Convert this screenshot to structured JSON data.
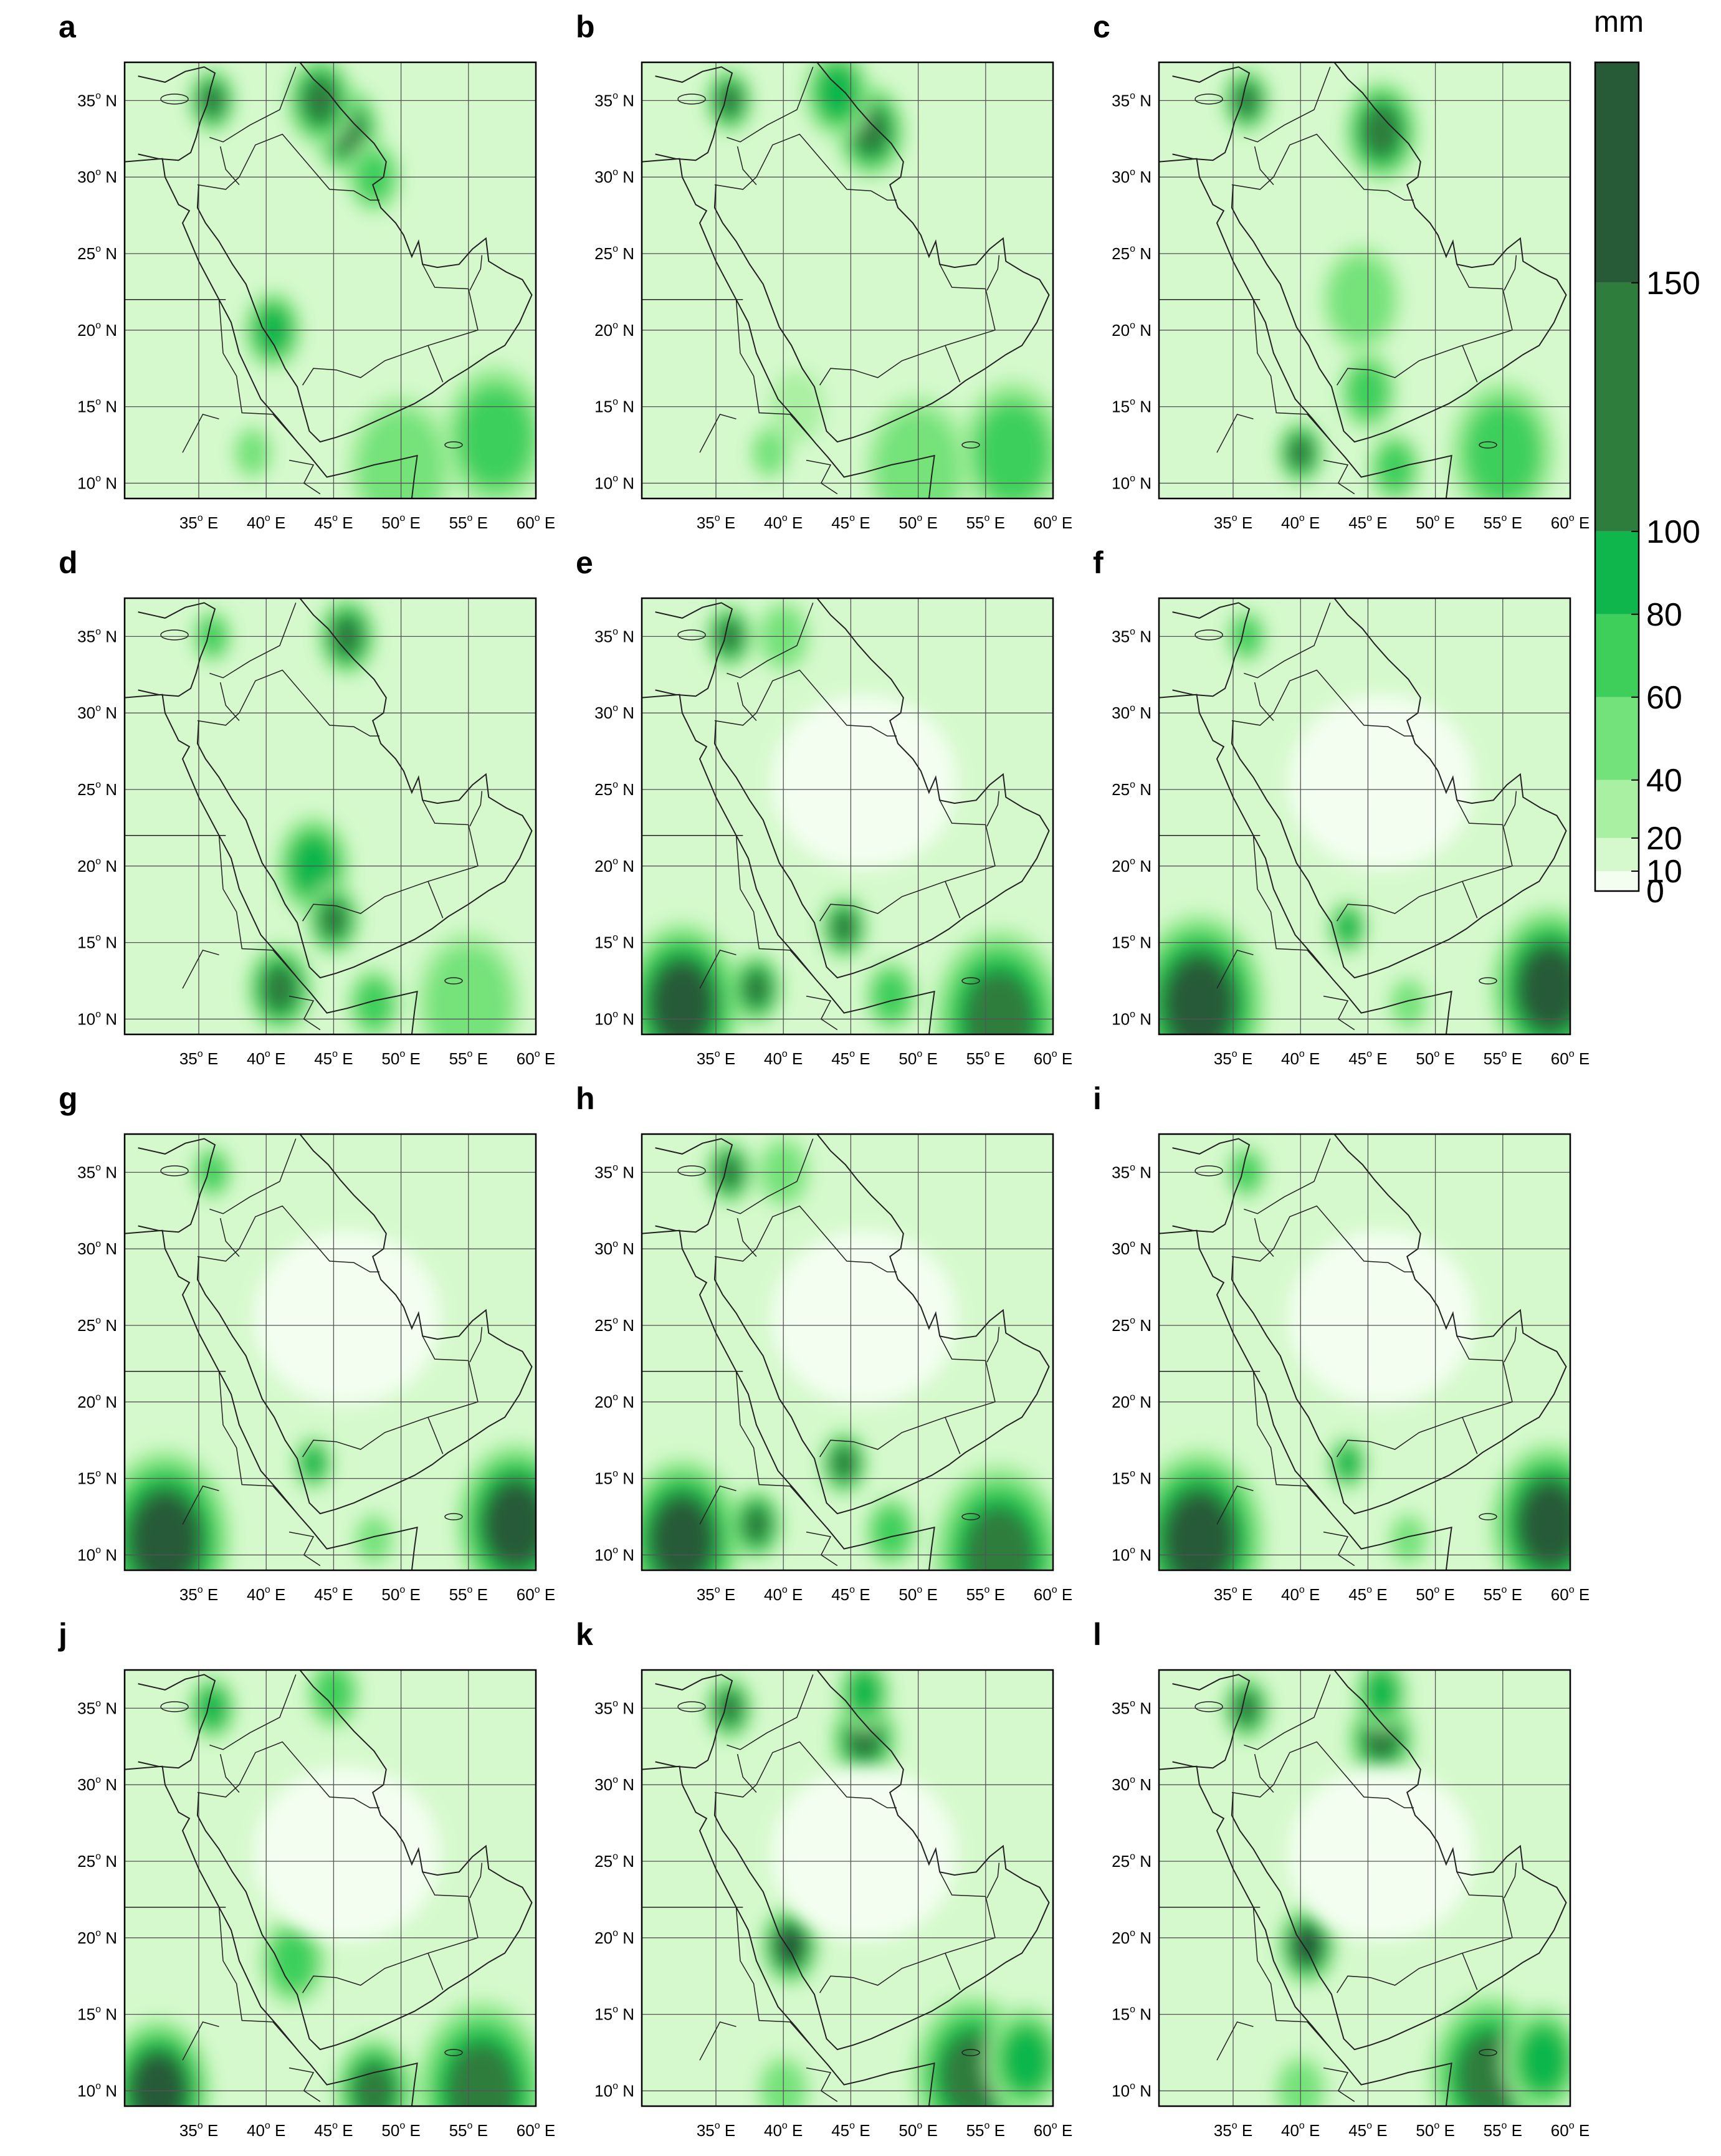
{
  "panels": [
    {
      "letter": "a",
      "profile": "east-north"
    },
    {
      "letter": "b",
      "profile": "north"
    },
    {
      "letter": "c",
      "profile": "central"
    },
    {
      "letter": "d",
      "profile": "central-strong"
    },
    {
      "letter": "e",
      "profile": "south"
    },
    {
      "letter": "f",
      "profile": "south-dry"
    },
    {
      "letter": "g",
      "profile": "south-dry"
    },
    {
      "letter": "h",
      "profile": "south"
    },
    {
      "letter": "i",
      "profile": "south-dry"
    },
    {
      "letter": "j",
      "profile": "southwest"
    },
    {
      "letter": "k",
      "profile": "asir-north"
    },
    {
      "letter": "l",
      "profile": "asir-north"
    }
  ],
  "lon_ticks": [
    "35",
    "40",
    "45",
    "50",
    "55",
    "60"
  ],
  "lon_suffix": "E",
  "lat_ticks": [
    "35",
    "30",
    "25",
    "20",
    "15",
    "10"
  ],
  "lat_suffix": "N",
  "degree_symbol": "o",
  "colorbar": {
    "unit": "mm",
    "labels": [
      "150",
      "100",
      "80",
      "60",
      "40",
      "20",
      "10",
      "0"
    ],
    "levels": [
      0,
      10,
      20,
      40,
      60,
      80,
      100,
      150
    ],
    "colors": [
      "#f3fef0",
      "#d5f9cc",
      "#aaf0a3",
      "#74e27a",
      "#3ecf5b",
      "#0fb64b",
      "#2f7d3c",
      "#275a37"
    ]
  },
  "map_colors": {
    "land_bg": "#e6fbe0",
    "coast": "#222222",
    "grid": "#555555"
  }
}
